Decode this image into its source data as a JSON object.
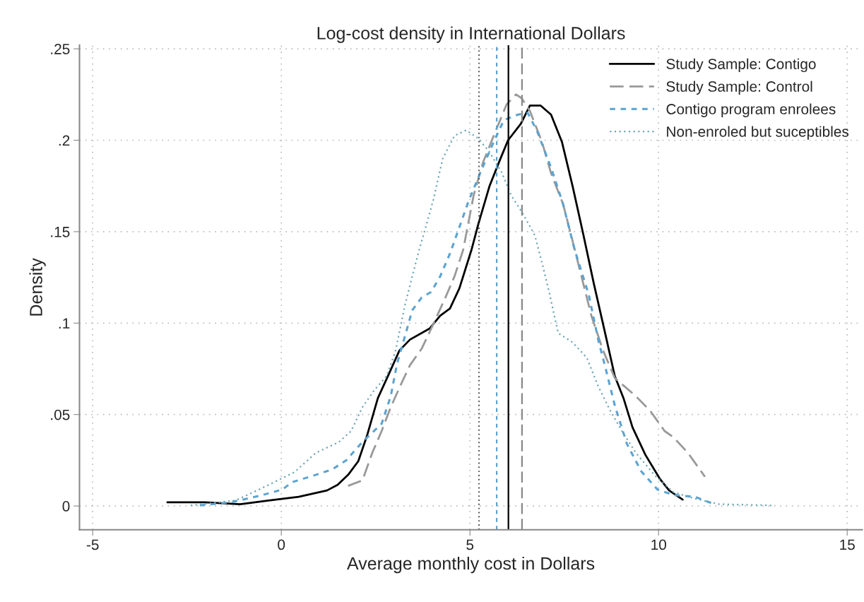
{
  "chart_data": {
    "type": "line",
    "title": "Log-cost density in International Dollars",
    "xlabel": "Average monthly cost in Dollars",
    "ylabel": "Density",
    "xlim": [
      -5.35,
      15.4
    ],
    "ylim": [
      -0.013,
      0.252
    ],
    "xticks": [
      -5,
      0,
      5,
      10,
      15
    ],
    "yticks": [
      0,
      {
        "value": 0.05,
        "label": ".05"
      },
      {
        "value": 0.1,
        "label": ".1"
      },
      {
        "value": 0.15,
        "label": ".15"
      },
      {
        "value": 0.2,
        "label": ".2"
      },
      {
        "value": 0.25,
        "label": ".25"
      }
    ],
    "grid": true,
    "legend": "top right",
    "series": [
      {
        "name": "Study Sample: Contigo",
        "color": "#000000",
        "line_style": "solid",
        "x": [
          -3.02,
          -2.03,
          -1.09,
          -0.34,
          0.46,
          1.21,
          1.49,
          1.77,
          2.04,
          2.28,
          2.56,
          2.88,
          3.13,
          3.41,
          3.93,
          4.21,
          4.47,
          4.72,
          5.04,
          5.22,
          5.52,
          5.81,
          6.01,
          6.35,
          6.59,
          6.87,
          7.15,
          7.44,
          7.72,
          8.0,
          8.28,
          8.6,
          8.84,
          9.07,
          9.31,
          9.65,
          10.03,
          10.28,
          10.64
        ],
        "values": [
          0.002,
          0.002,
          0.001,
          0.003,
          0.005,
          0.0085,
          0.0115,
          0.017,
          0.0245,
          0.039,
          0.059,
          0.0735,
          0.085,
          0.091,
          0.097,
          0.104,
          0.108,
          0.119,
          0.14,
          0.154,
          0.175,
          0.19,
          0.2,
          0.209,
          0.219,
          0.219,
          0.214,
          0.199,
          0.175,
          0.149,
          0.122,
          0.093,
          0.071,
          0.059,
          0.043,
          0.028,
          0.015,
          0.0085,
          0.0035
        ]
      },
      {
        "name": "Study Sample: Control",
        "color": "#999999",
        "line_style": "dashed",
        "x": [
          1.77,
          2.15,
          2.41,
          2.66,
          2.9,
          3.16,
          3.41,
          3.72,
          4.03,
          4.35,
          4.59,
          4.82,
          5.1,
          5.34,
          5.65,
          5.97,
          6.22,
          6.37,
          6.59,
          6.91,
          7.15,
          7.47,
          7.72,
          8.0,
          8.22,
          8.53,
          8.84,
          9.4,
          9.78,
          10.16,
          10.4,
          10.78,
          11.23
        ],
        "values": [
          0.011,
          0.014,
          0.029,
          0.041,
          0.054,
          0.066,
          0.077,
          0.086,
          0.0995,
          0.114,
          0.1255,
          0.14,
          0.17,
          0.1875,
          0.2035,
          0.2195,
          0.225,
          0.223,
          0.216,
          0.199,
          0.182,
          0.165,
          0.145,
          0.122,
          0.104,
          0.085,
          0.07,
          0.06,
          0.052,
          0.041,
          0.0375,
          0.029,
          0.016
        ]
      },
      {
        "name": "Contigo program enrolees",
        "color": "#5ba3d0",
        "line_style": "dashed_fine",
        "x": [
          -2.16,
          -1.34,
          -0.59,
          0.03,
          0.28,
          0.91,
          1.35,
          1.72,
          2.15,
          2.66,
          2.9,
          3.07,
          3.28,
          3.47,
          3.72,
          3.97,
          4.21,
          4.47,
          4.66,
          4.96,
          5.28,
          5.65,
          5.9,
          6.27,
          6.53,
          6.78,
          7.15,
          7.47,
          7.77,
          8.15,
          8.41,
          8.6,
          8.84,
          9.16,
          9.54,
          9.97,
          10.4,
          10.97,
          11.47
        ],
        "values": [
          0.0003,
          0.002,
          0.0055,
          0.009,
          0.013,
          0.017,
          0.02,
          0.025,
          0.035,
          0.045,
          0.06,
          0.078,
          0.093,
          0.107,
          0.114,
          0.117,
          0.1255,
          0.138,
          0.149,
          0.1665,
          0.1825,
          0.2,
          0.211,
          0.214,
          0.215,
          0.205,
          0.185,
          0.165,
          0.1405,
          0.1155,
          0.09,
          0.075,
          0.055,
          0.034,
          0.019,
          0.009,
          0.006,
          0.005,
          0.001
        ]
      },
      {
        "name": "Non-enroled but suceptibles",
        "color": "#6fa8b5",
        "line_style": "dotted",
        "x": [
          -2.4,
          -1.22,
          -0.59,
          0.35,
          0.91,
          1.53,
          1.85,
          2.15,
          2.47,
          2.79,
          3.03,
          3.28,
          3.47,
          3.66,
          3.78,
          4.03,
          4.28,
          4.59,
          4.9,
          5.22,
          5.52,
          5.84,
          6.09,
          6.4,
          6.72,
          6.91,
          7.1,
          7.34,
          7.72,
          8.1,
          8.41,
          8.71,
          9.03,
          9.4,
          9.91,
          10.4,
          10.97,
          11.6,
          13.03
        ],
        "values": [
          0.0003,
          0.003,
          0.009,
          0.0185,
          0.029,
          0.035,
          0.041,
          0.054,
          0.0635,
          0.071,
          0.085,
          0.11,
          0.1255,
          0.1405,
          0.149,
          0.1675,
          0.19,
          0.2025,
          0.2055,
          0.201,
          0.1935,
          0.1825,
          0.17,
          0.16,
          0.148,
          0.133,
          0.117,
          0.0945,
          0.0895,
          0.081,
          0.065,
          0.0525,
          0.041,
          0.029,
          0.0165,
          0.0075,
          0.004,
          0.001,
          0.0003
        ]
      }
    ],
    "ref_lines": [
      {
        "axis": "x",
        "value": 5.24,
        "color": "#555555",
        "line_style": "dotted"
      },
      {
        "axis": "x",
        "value": 5.71,
        "color": "#5ba3d0",
        "line_style": "dashed_fine"
      },
      {
        "axis": "x",
        "value": 6.02,
        "color": "#000000",
        "line_style": "solid"
      },
      {
        "axis": "x",
        "value": 6.38,
        "color": "#888888",
        "line_style": "dashed"
      }
    ]
  }
}
